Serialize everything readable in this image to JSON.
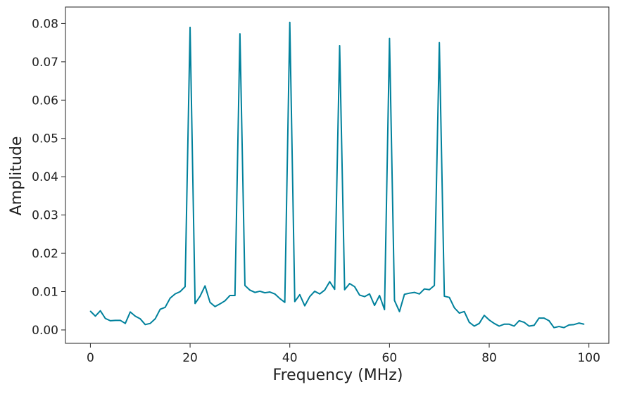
{
  "chart_data": {
    "type": "line",
    "title": "",
    "xlabel": "Frequency (MHz)",
    "ylabel": "Amplitude",
    "xlim": [
      -5,
      104
    ],
    "ylim": [
      -0.0035,
      0.0843
    ],
    "grid": false,
    "legend": "none",
    "line_color": "#00819C",
    "x_ticks": [
      0,
      20,
      40,
      60,
      80,
      100
    ],
    "x_tick_labels": [
      "0",
      "20",
      "40",
      "60",
      "80",
      "100"
    ],
    "y_ticks": [
      0.0,
      0.01,
      0.02,
      0.03,
      0.04,
      0.05,
      0.06,
      0.07,
      0.08
    ],
    "y_tick_labels": [
      "0.00",
      "0.01",
      "0.02",
      "0.03",
      "0.04",
      "0.05",
      "0.06",
      "0.07",
      "0.08"
    ],
    "series": [
      {
        "x": [
          0,
          1,
          2,
          3,
          4,
          5,
          6,
          7,
          8,
          9,
          10,
          11,
          12,
          13,
          14,
          15,
          16,
          17,
          18,
          19,
          20,
          21,
          22,
          23,
          24,
          25,
          26,
          27,
          28,
          29,
          30,
          31,
          32,
          33,
          34,
          35,
          36,
          37,
          38,
          39,
          40,
          41,
          42,
          43,
          44,
          45,
          46,
          47,
          48,
          49,
          50,
          51,
          52,
          53,
          54,
          55,
          56,
          57,
          58,
          59,
          60,
          61,
          62,
          63,
          64,
          65,
          66,
          67,
          68,
          69,
          70,
          71,
          72,
          73,
          74,
          75,
          76,
          77,
          78,
          79,
          80,
          81,
          82,
          83,
          84,
          85,
          86,
          87,
          88,
          89,
          90,
          91,
          92,
          93,
          94,
          95,
          96,
          97,
          98,
          99
        ],
        "values": [
          0.0049,
          0.0036,
          0.005,
          0.003,
          0.0024,
          0.0025,
          0.0025,
          0.0017,
          0.0047,
          0.0036,
          0.0029,
          0.0014,
          0.0017,
          0.0029,
          0.0054,
          0.0059,
          0.0083,
          0.0094,
          0.01,
          0.0113,
          0.079,
          0.0069,
          0.0088,
          0.0115,
          0.0072,
          0.0061,
          0.0068,
          0.0076,
          0.009,
          0.009,
          0.0773,
          0.0116,
          0.0104,
          0.0098,
          0.0101,
          0.0097,
          0.0099,
          0.0094,
          0.0082,
          0.0072,
          0.0803,
          0.0074,
          0.0092,
          0.0063,
          0.0087,
          0.0101,
          0.0094,
          0.0104,
          0.0126,
          0.0106,
          0.0742,
          0.0105,
          0.0121,
          0.0113,
          0.0091,
          0.0087,
          0.0094,
          0.0064,
          0.009,
          0.0053,
          0.0761,
          0.0077,
          0.0048,
          0.0093,
          0.0096,
          0.0098,
          0.0094,
          0.0107,
          0.0105,
          0.0116,
          0.075,
          0.0088,
          0.0085,
          0.0058,
          0.0044,
          0.0048,
          0.002,
          0.001,
          0.0017,
          0.0038,
          0.0026,
          0.0017,
          0.001,
          0.0015,
          0.0015,
          0.001,
          0.0024,
          0.002,
          0.001,
          0.0012,
          0.0031,
          0.0031,
          0.0024,
          0.0006,
          0.0009,
          0.0006,
          0.0013,
          0.0014,
          0.0018,
          0.0015
        ]
      }
    ]
  }
}
